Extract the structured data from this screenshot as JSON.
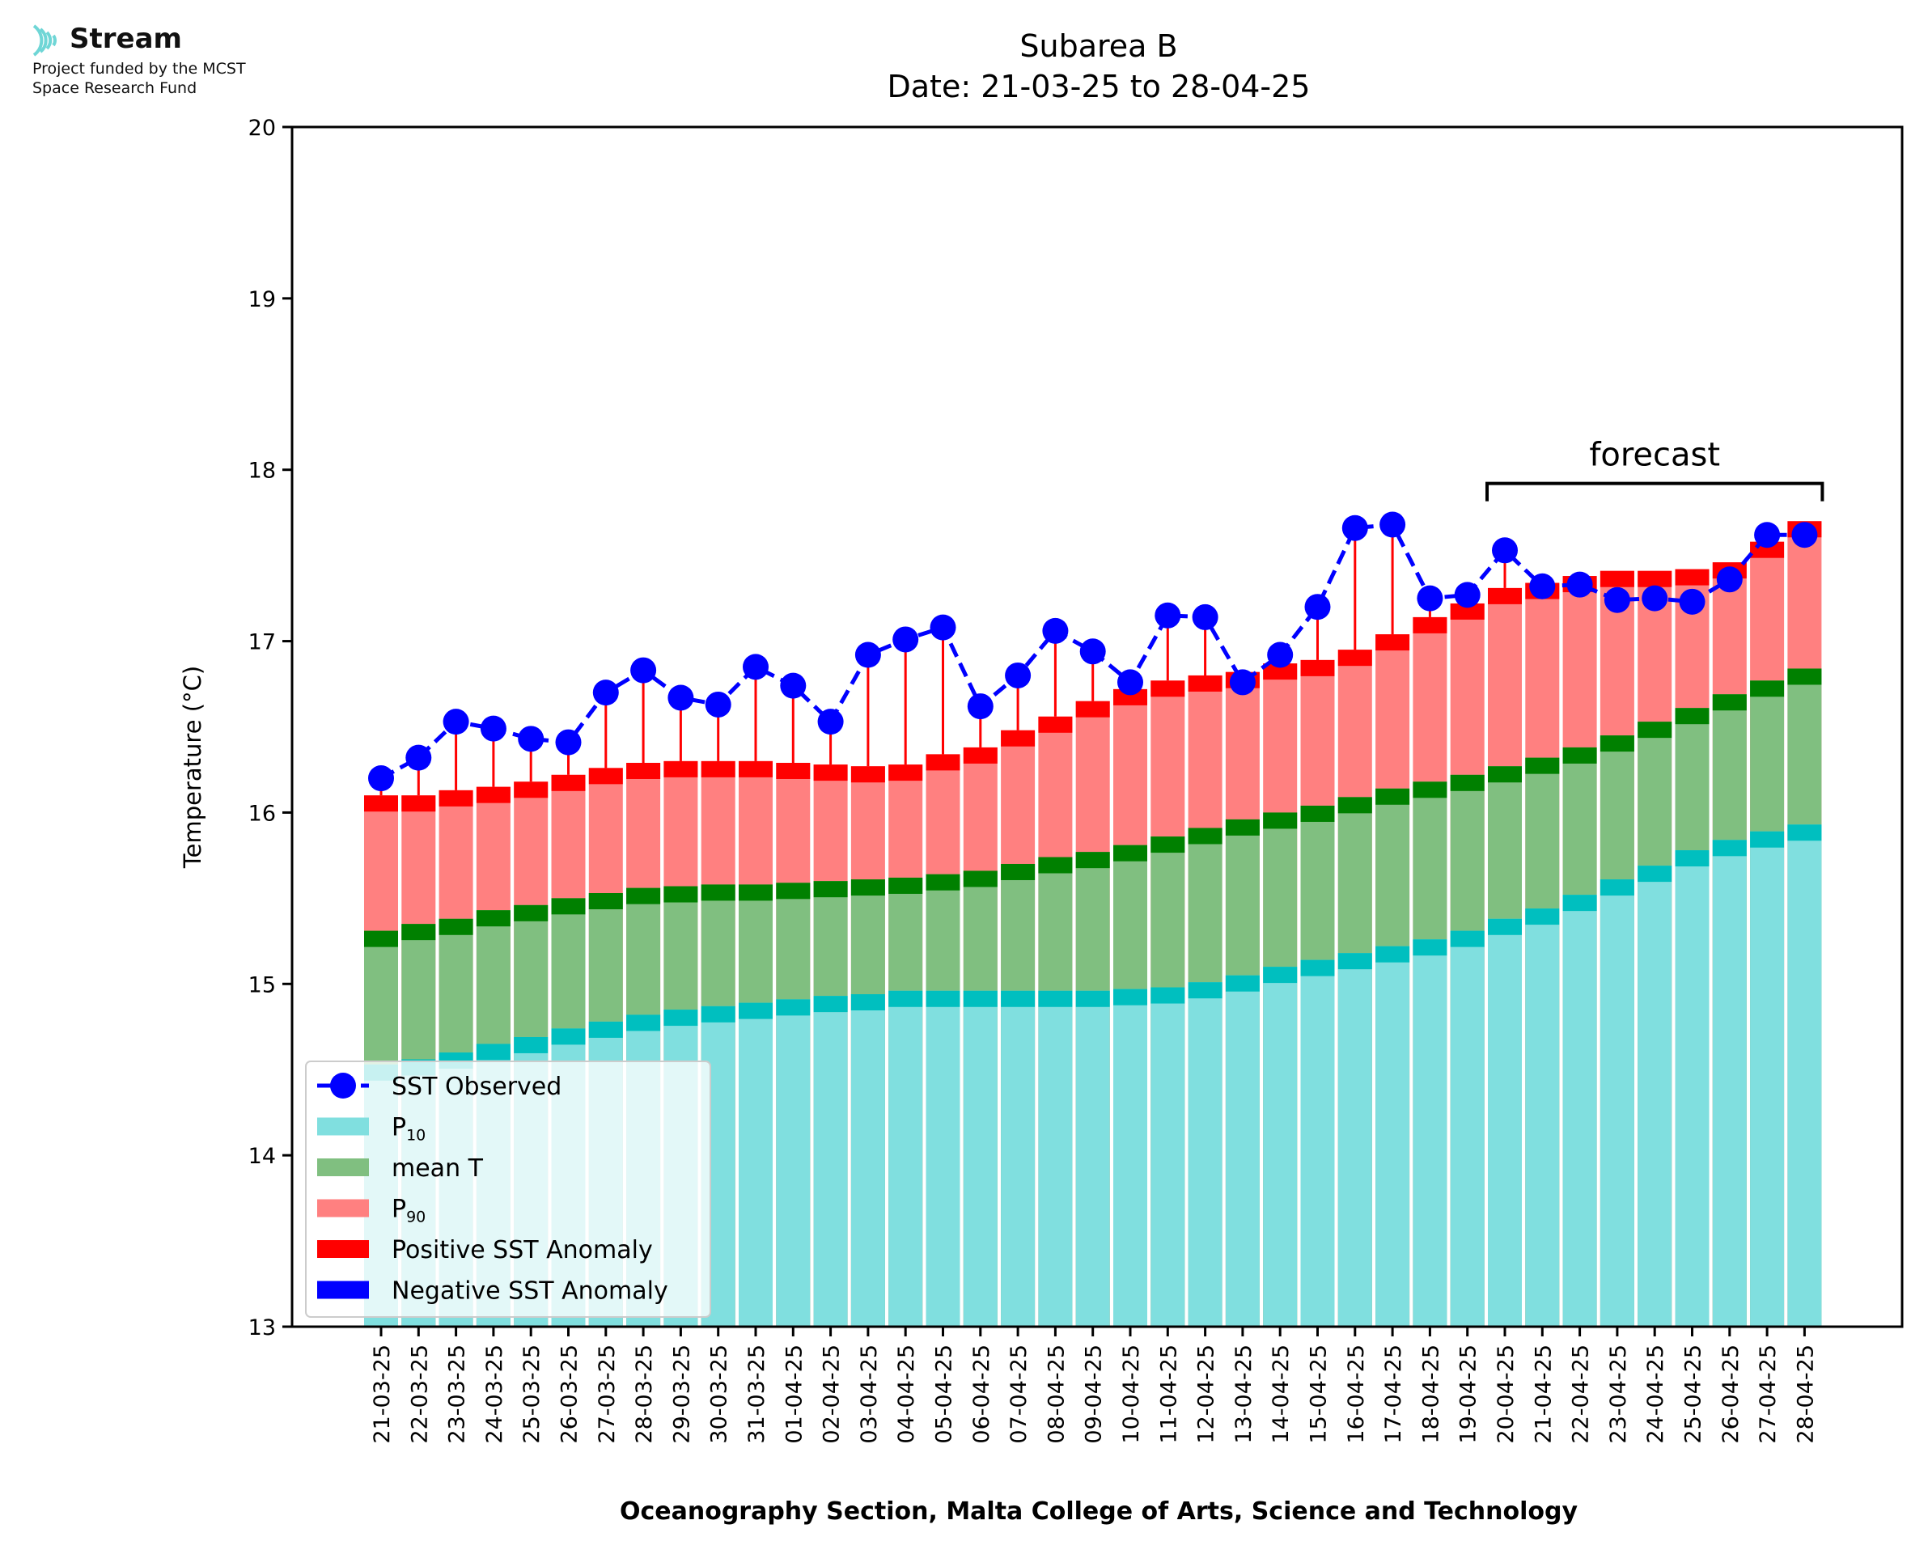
{
  "logo": {
    "name": "Stream",
    "line1": "Project funded by the MCST",
    "line2": "Space Research Fund"
  },
  "chart_data": {
    "type": "bar",
    "title": "Subarea B",
    "subtitle": "Date: 21-03-25 to 28-04-25",
    "xlabel": "Oceanography Section, Malta College of Arts, Science and Technology",
    "ylabel": "Temperature (°C)",
    "ylim": [
      13,
      20
    ],
    "yticks": [
      "13",
      "14",
      "15",
      "16",
      "17",
      "18",
      "19",
      "20"
    ],
    "categories": [
      "21-03-25",
      "22-03-25",
      "23-03-25",
      "24-03-25",
      "25-03-25",
      "26-03-25",
      "27-03-25",
      "28-03-25",
      "29-03-25",
      "30-03-25",
      "31-03-25",
      "01-04-25",
      "02-04-25",
      "03-04-25",
      "04-04-25",
      "05-04-25",
      "06-04-25",
      "07-04-25",
      "08-04-25",
      "09-04-25",
      "10-04-25",
      "11-04-25",
      "12-04-25",
      "13-04-25",
      "14-04-25",
      "15-04-25",
      "16-04-25",
      "17-04-25",
      "18-04-25",
      "19-04-25",
      "20-04-25",
      "21-04-25",
      "22-04-25",
      "23-04-25",
      "24-04-25",
      "25-04-25",
      "26-04-25",
      "27-04-25",
      "28-04-25"
    ],
    "series": [
      {
        "name": "SST Observed",
        "type": "line",
        "color": "#0000ff",
        "values": [
          16.2,
          16.32,
          16.53,
          16.49,
          16.43,
          16.41,
          16.7,
          16.83,
          16.67,
          16.63,
          16.85,
          16.74,
          16.53,
          16.92,
          17.01,
          17.08,
          16.62,
          16.8,
          17.06,
          16.94,
          16.76,
          17.15,
          17.14,
          16.76,
          16.92,
          17.2,
          17.66,
          17.68,
          17.25,
          17.27,
          17.53,
          17.32,
          17.33,
          17.24,
          17.25,
          17.23,
          17.36,
          17.62,
          17.62
        ]
      },
      {
        "name": "P10",
        "type": "bar",
        "color": "#80dfdf",
        "values": [
          14.53,
          14.56,
          14.6,
          14.65,
          14.69,
          14.74,
          14.78,
          14.82,
          14.85,
          14.87,
          14.89,
          14.91,
          14.93,
          14.94,
          14.96,
          14.96,
          14.96,
          14.96,
          14.96,
          14.96,
          14.97,
          14.98,
          15.01,
          15.05,
          15.1,
          15.14,
          15.18,
          15.22,
          15.26,
          15.31,
          15.38,
          15.44,
          15.52,
          15.61,
          15.69,
          15.78,
          15.84,
          15.89,
          15.93
        ]
      },
      {
        "name": "mean T",
        "type": "bar",
        "color": "#80bf80",
        "values": [
          15.31,
          15.35,
          15.38,
          15.43,
          15.46,
          15.5,
          15.53,
          15.56,
          15.57,
          15.58,
          15.58,
          15.59,
          15.6,
          15.61,
          15.62,
          15.64,
          15.66,
          15.7,
          15.74,
          15.77,
          15.81,
          15.86,
          15.91,
          15.96,
          16.0,
          16.04,
          16.09,
          16.14,
          16.18,
          16.22,
          16.27,
          16.32,
          16.38,
          16.45,
          16.53,
          16.61,
          16.69,
          16.77,
          16.84
        ]
      },
      {
        "name": "P90",
        "type": "bar",
        "color": "#ff8080",
        "values": [
          16.1,
          16.1,
          16.13,
          16.15,
          16.18,
          16.22,
          16.26,
          16.29,
          16.3,
          16.3,
          16.3,
          16.29,
          16.28,
          16.27,
          16.28,
          16.34,
          16.38,
          16.48,
          16.56,
          16.65,
          16.72,
          16.77,
          16.8,
          16.82,
          16.87,
          16.89,
          16.95,
          17.04,
          17.14,
          17.22,
          17.31,
          17.34,
          17.38,
          17.41,
          17.41,
          17.42,
          17.46,
          17.58,
          17.7
        ]
      },
      {
        "name": "Positive SST Anomaly",
        "type": "anomaly",
        "color": "#ff0000"
      },
      {
        "name": "Negative SST Anomaly",
        "type": "anomaly",
        "color": "#0000ff"
      }
    ],
    "legend_labels": {
      "observed": "SST Observed",
      "p10_base": "P",
      "p10_sub": "10",
      "mean": "mean T",
      "p90_base": "P",
      "p90_sub": "90",
      "pos": "Positive SST Anomaly",
      "neg": "Negative SST Anomaly"
    },
    "legend_position": "lower-left",
    "annotation": {
      "text": "forecast",
      "from": "20-04-25",
      "to": "28-04-25"
    },
    "colors": {
      "p10": "#80dfdf",
      "p10_edge": "#00bfbf",
      "mean": "#80bf80",
      "mean_edge": "#008000",
      "p90": "#ff8080",
      "p90_edge": "#ff0000",
      "observed": "#0000ff",
      "anomaly_pos": "#ff0000",
      "anomaly_neg": "#0000ff"
    }
  }
}
